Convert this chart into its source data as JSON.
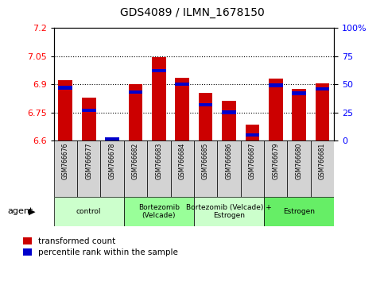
{
  "title": "GDS4089 / ILMN_1678150",
  "samples": [
    "GSM766676",
    "GSM766677",
    "GSM766678",
    "GSM766682",
    "GSM766683",
    "GSM766684",
    "GSM766685",
    "GSM766686",
    "GSM766687",
    "GSM766679",
    "GSM766680",
    "GSM766681"
  ],
  "transformed_counts": [
    6.92,
    6.83,
    6.61,
    6.9,
    7.047,
    6.935,
    6.855,
    6.81,
    6.685,
    6.93,
    6.875,
    6.905
  ],
  "percentile_ranks": [
    47,
    27,
    1,
    43,
    62,
    50,
    32,
    25,
    5,
    49,
    42,
    46
  ],
  "ylim_left": [
    6.6,
    7.2
  ],
  "ylim_right": [
    0,
    100
  ],
  "yticks_left": [
    6.6,
    6.75,
    6.9,
    7.05,
    7.2
  ],
  "yticks_right": [
    0,
    25,
    50,
    75,
    100
  ],
  "groups": [
    {
      "label": "control",
      "start": 0,
      "end": 3,
      "color": "#ccffcc"
    },
    {
      "label": "Bortezomib\n(Velcade)",
      "start": 3,
      "end": 6,
      "color": "#99ff99"
    },
    {
      "label": "Bortezomib (Velcade) +\nEstrogen",
      "start": 6,
      "end": 9,
      "color": "#ccffcc"
    },
    {
      "label": "Estrogen",
      "start": 9,
      "end": 12,
      "color": "#66ee66"
    }
  ],
  "bar_color": "#cc0000",
  "percentile_color": "#0000cc",
  "bar_width": 0.6,
  "axes_bg": "#ffffff"
}
